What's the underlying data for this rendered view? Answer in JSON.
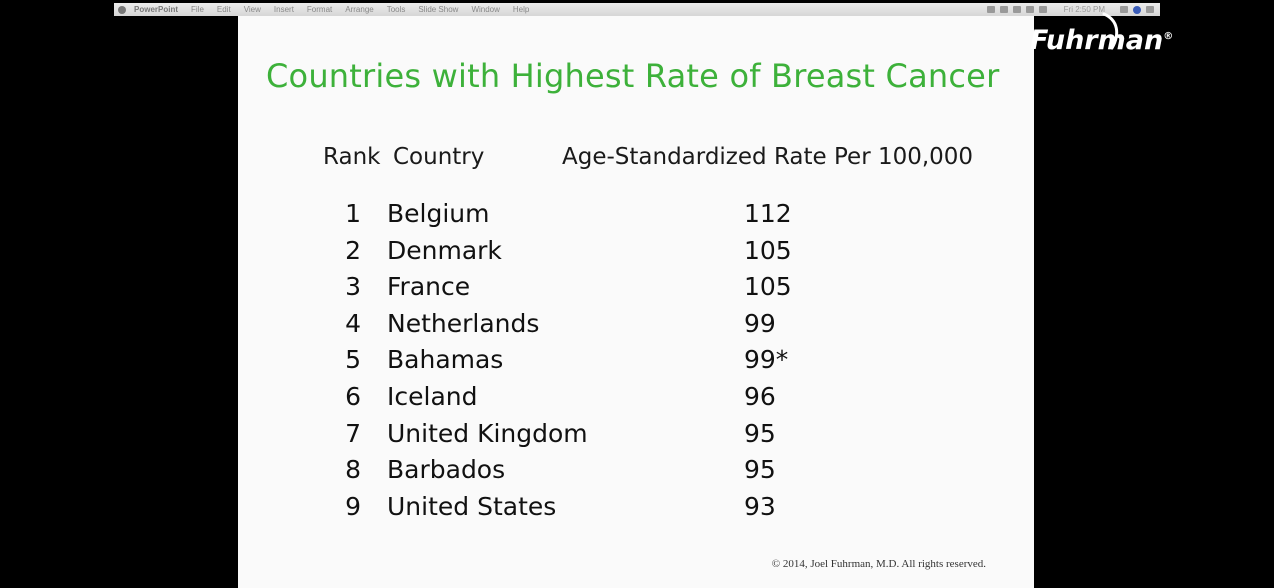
{
  "menubar": {
    "app": "PowerPoint",
    "items": [
      "File",
      "Edit",
      "View",
      "Insert",
      "Format",
      "Arrange",
      "Tools",
      "Slide Show",
      "Window",
      "Help"
    ],
    "clock": "Fri 2:50 PM"
  },
  "slide": {
    "title": "Countries with Highest Rate of Breast Cancer",
    "headers": {
      "rank": "Rank",
      "country": "Country",
      "rate": "Age-Standardized Rate Per 100,000"
    },
    "rows": [
      {
        "rank": "1",
        "country": "Belgium",
        "rate": "112"
      },
      {
        "rank": "2",
        "country": "Denmark",
        "rate": "105"
      },
      {
        "rank": "3",
        "country": "France",
        "rate": "105"
      },
      {
        "rank": "4",
        "country": "Netherlands",
        "rate": "99"
      },
      {
        "rank": "5",
        "country": "Bahamas",
        "rate": "99*"
      },
      {
        "rank": "6",
        "country": "Iceland",
        "rate": "96"
      },
      {
        "rank": "7",
        "country": "United Kingdom",
        "rate": "95"
      },
      {
        "rank": "8",
        "country": "Barbados",
        "rate": "95"
      },
      {
        "rank": "9",
        "country": "United States",
        "rate": "93"
      }
    ],
    "copyright": "© 2014, Joel Fuhrman, M.D.  All rights reserved."
  },
  "logo": {
    "text": "Fuhrman",
    "mark": "®"
  },
  "colors": {
    "title": "#3db13a",
    "slide_bg": "#fafafa",
    "frame_bg": "#000000"
  }
}
